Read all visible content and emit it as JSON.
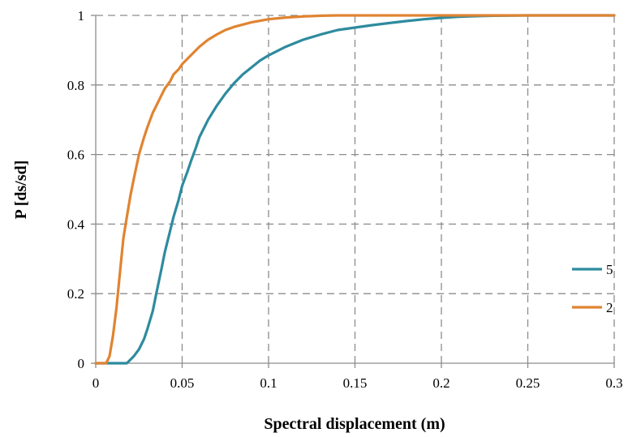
{
  "chart_data": {
    "type": "line",
    "xlabel": "Spectral displacement (m)",
    "ylabel": "P [ds/sd]",
    "xlim": [
      0,
      0.3
    ],
    "ylim": [
      0,
      1
    ],
    "x_ticks": [
      "0",
      "0.05",
      "0.1",
      "0.15",
      "0.2",
      "0.25",
      "0.3"
    ],
    "y_ticks": [
      "0",
      "0.2",
      "0.4",
      "0.6",
      "0.8",
      "1"
    ],
    "grid": true,
    "legend_position": "right",
    "series": [
      {
        "name": "5",
        "color": "#2e8b9e",
        "x": [
          0,
          0.008,
          0.018,
          0.02,
          0.022,
          0.025,
          0.028,
          0.03,
          0.033,
          0.035,
          0.038,
          0.04,
          0.043,
          0.045,
          0.048,
          0.05,
          0.053,
          0.055,
          0.058,
          0.06,
          0.065,
          0.07,
          0.075,
          0.08,
          0.085,
          0.09,
          0.095,
          0.1,
          0.11,
          0.12,
          0.13,
          0.14,
          0.15,
          0.16,
          0.17,
          0.18,
          0.19,
          0.2,
          0.21,
          0.22,
          0.23,
          0.25,
          0.3
        ],
        "y": [
          0,
          0,
          0,
          0.01,
          0.02,
          0.04,
          0.07,
          0.1,
          0.15,
          0.2,
          0.27,
          0.32,
          0.38,
          0.42,
          0.47,
          0.51,
          0.55,
          0.58,
          0.62,
          0.65,
          0.7,
          0.74,
          0.775,
          0.805,
          0.83,
          0.85,
          0.87,
          0.885,
          0.91,
          0.93,
          0.945,
          0.958,
          0.965,
          0.972,
          0.978,
          0.984,
          0.989,
          0.993,
          0.996,
          0.998,
          0.999,
          1,
          1
        ]
      },
      {
        "name": "2",
        "color": "#e08431",
        "x": [
          0,
          0.006,
          0.008,
          0.01,
          0.012,
          0.014,
          0.016,
          0.018,
          0.02,
          0.022,
          0.025,
          0.028,
          0.03,
          0.033,
          0.035,
          0.038,
          0.04,
          0.043,
          0.045,
          0.048,
          0.05,
          0.055,
          0.06,
          0.065,
          0.07,
          0.075,
          0.08,
          0.09,
          0.1,
          0.11,
          0.12,
          0.13,
          0.14,
          0.2,
          0.3
        ],
        "y": [
          0,
          0,
          0.02,
          0.08,
          0.16,
          0.26,
          0.36,
          0.42,
          0.48,
          0.53,
          0.6,
          0.65,
          0.68,
          0.72,
          0.74,
          0.77,
          0.79,
          0.81,
          0.83,
          0.845,
          0.86,
          0.885,
          0.91,
          0.93,
          0.945,
          0.958,
          0.967,
          0.98,
          0.989,
          0.994,
          0.997,
          0.999,
          1,
          1,
          1
        ]
      }
    ]
  }
}
